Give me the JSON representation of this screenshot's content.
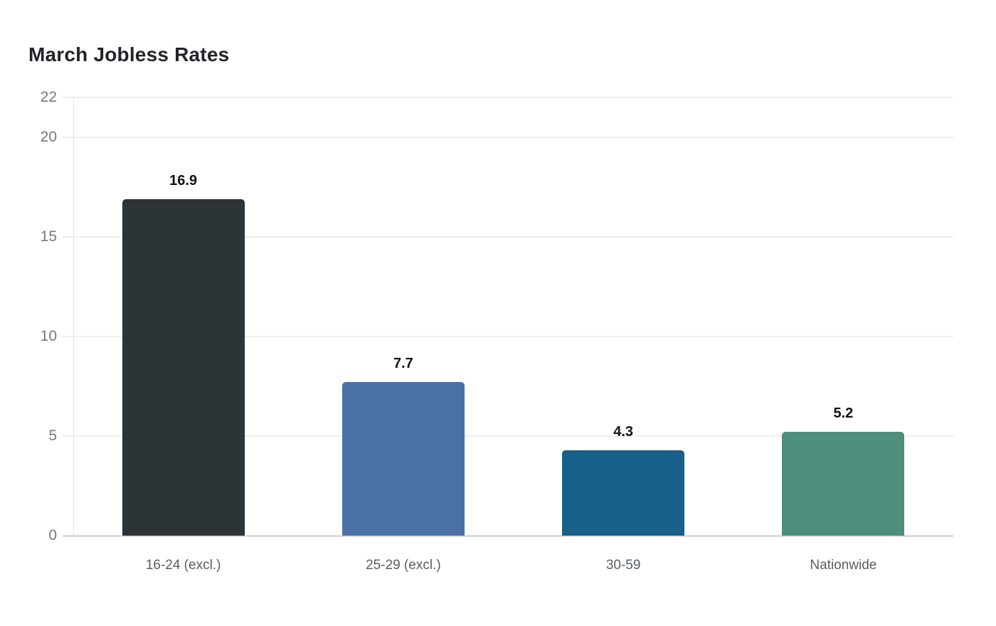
{
  "title": "March Jobless Rates",
  "chart_data": {
    "type": "bar",
    "title": "March Jobless Rates",
    "categories": [
      "16-24 (excl.)",
      "25-29 (excl.)",
      "30-59",
      "Nationwide"
    ],
    "values": [
      16.9,
      7.7,
      4.3,
      5.2
    ],
    "value_labels": [
      "16.9",
      "7.7",
      "4.3",
      "5.2"
    ],
    "bar_colors": [
      "#2c3437",
      "#4b70a8",
      "#17608a",
      "#4e8e7c"
    ],
    "yticks": [
      0,
      5,
      10,
      15,
      20,
      22
    ],
    "ylim": [
      0,
      22
    ],
    "xlabel": "",
    "ylabel": "",
    "grid": true,
    "legend": false,
    "colors": {
      "background": "#ffffff",
      "gridline": "#ededed",
      "baseline": "#dcdcdc",
      "axis_line": "#e5e5e5",
      "tick_label": "#75787b",
      "category_label": "#595d61",
      "value_label": "#101214",
      "title": "#212529"
    }
  }
}
